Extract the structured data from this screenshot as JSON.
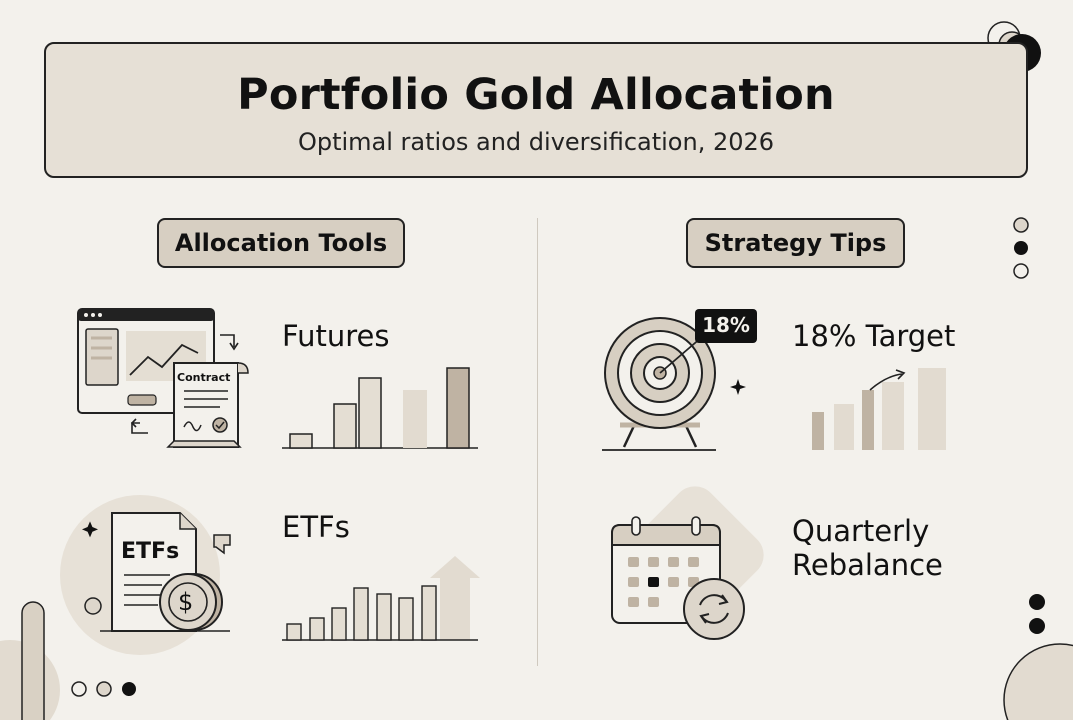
{
  "header": {
    "title": "Portfolio Gold Allocation",
    "subtitle": "Optimal ratios and diversification, 2026"
  },
  "sections": {
    "left_title": "Allocation Tools",
    "right_title": "Strategy Tips"
  },
  "items": {
    "futures": {
      "label": "Futures",
      "icon_text": "Contract"
    },
    "etfs": {
      "label": "ETFs",
      "icon_text": "ETFs",
      "coin_symbol": "$"
    },
    "target": {
      "label": "18% Target",
      "badge": "18%"
    },
    "rebalance": {
      "label_line1": "Quarterly",
      "label_line2": "Rebalance"
    }
  },
  "colors": {
    "background": "#f3f1ec",
    "header_fill": "#e6e0d6",
    "pill_fill": "#d7cfc2",
    "accent_taupe": "#bfb3a3",
    "light_taupe": "#ddd6cb",
    "ink": "#111111"
  },
  "icons": [
    "browser-chart-icon",
    "contract-icon",
    "etf-document-icon",
    "dollar-coin-icon",
    "target-icon",
    "calendar-sync-icon",
    "sparkle-icon",
    "trend-arrow-icon"
  ]
}
